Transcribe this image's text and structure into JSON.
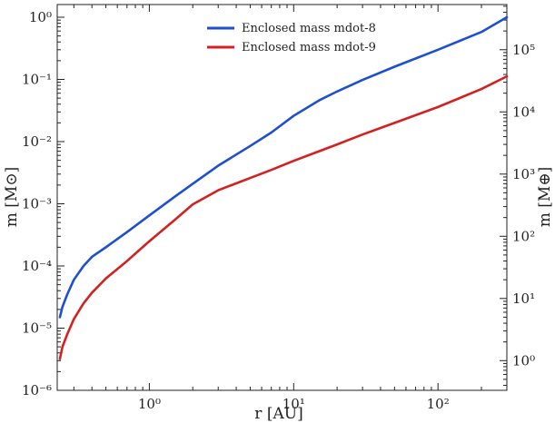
{
  "chart_data": {
    "type": "line",
    "xlabel": "r [AU]",
    "ylabel_left": "m [M⊙]",
    "ylabel_right": "m [M⊕]",
    "x_scale": "log",
    "y_scale": "log",
    "xlim": [
      0.23,
      300
    ],
    "ylim": [
      1e-06,
      1.6
    ],
    "y2lim_earth_masses": [
      0.333,
      532800
    ],
    "grid": false,
    "legend_position": "top-center",
    "x_ticks": [
      {
        "value": 1,
        "label": "10⁰"
      },
      {
        "value": 10,
        "label": "10¹"
      },
      {
        "value": 100,
        "label": "10²"
      }
    ],
    "y_ticks": [
      {
        "value": 1e-06,
        "label": "10⁻⁶"
      },
      {
        "value": 1e-05,
        "label": "10⁻⁵"
      },
      {
        "value": 0.0001,
        "label": "10⁻⁴"
      },
      {
        "value": 0.001,
        "label": "10⁻³"
      },
      {
        "value": 0.01,
        "label": "10⁻²"
      },
      {
        "value": 0.1,
        "label": "10⁻¹"
      },
      {
        "value": 1,
        "label": "10⁰"
      }
    ],
    "y2_ticks": [
      {
        "value": 1,
        "label": "10⁰"
      },
      {
        "value": 10,
        "label": "10¹"
      },
      {
        "value": 100,
        "label": "10²"
      },
      {
        "value": 1000,
        "label": "10³"
      },
      {
        "value": 10000,
        "label": "10⁴"
      },
      {
        "value": 100000,
        "label": "10⁵"
      }
    ],
    "series": [
      {
        "name": "Enclosed mass mdot-8",
        "color": "#1f4fd1",
        "x": [
          0.24,
          0.25,
          0.27,
          0.3,
          0.35,
          0.4,
          0.5,
          0.7,
          1,
          1.5,
          2,
          3,
          5,
          7,
          10,
          15,
          20,
          30,
          50,
          100,
          200,
          300
        ],
        "y": [
          1.5e-05,
          2.2e-05,
          3.5e-05,
          6e-05,
          0.0001,
          0.00014,
          0.0002,
          0.00035,
          0.00065,
          0.0013,
          0.0021,
          0.0041,
          0.0085,
          0.014,
          0.026,
          0.046,
          0.064,
          0.098,
          0.16,
          0.3,
          0.58,
          1.0
        ]
      },
      {
        "name": "Enclosed mass mdot-9",
        "color": "#d42020",
        "x": [
          0.24,
          0.25,
          0.27,
          0.3,
          0.35,
          0.4,
          0.5,
          0.7,
          1,
          1.5,
          2,
          3,
          5,
          7,
          10,
          15,
          20,
          30,
          50,
          100,
          200,
          300
        ],
        "y": [
          3.2e-06,
          5e-06,
          8e-06,
          1.4e-05,
          2.5e-05,
          3.7e-05,
          6.3e-05,
          0.00012,
          0.00025,
          0.00055,
          0.00098,
          0.00165,
          0.0026,
          0.0035,
          0.0049,
          0.007,
          0.009,
          0.013,
          0.02,
          0.036,
          0.07,
          0.112
        ]
      }
    ]
  }
}
